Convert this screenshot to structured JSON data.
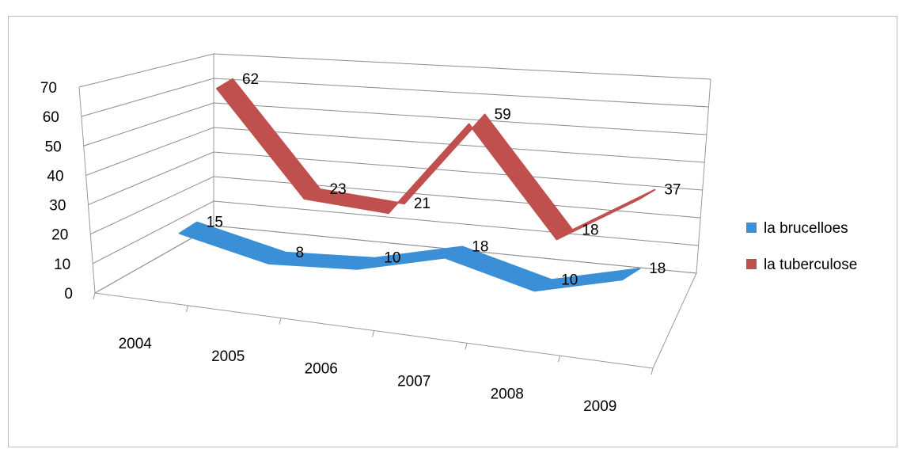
{
  "chart_data": {
    "type": "line",
    "style": "3d-ribbon",
    "categories": [
      "2004",
      "2005",
      "2006",
      "2007",
      "2008",
      "2009"
    ],
    "yticks": [
      "0",
      "10",
      "20",
      "30",
      "40",
      "50",
      "60",
      "70"
    ],
    "ylim": [
      0,
      70
    ],
    "grid": true,
    "legend_position": "right",
    "series": [
      {
        "name": "la brucelloes",
        "values": [
          15,
          8,
          10,
          18,
          10,
          18
        ],
        "color": "#3a8fd6"
      },
      {
        "name": "la tuberculose",
        "values": [
          62,
          23,
          21,
          59,
          18,
          37
        ],
        "color": "#c0504d"
      }
    ]
  }
}
